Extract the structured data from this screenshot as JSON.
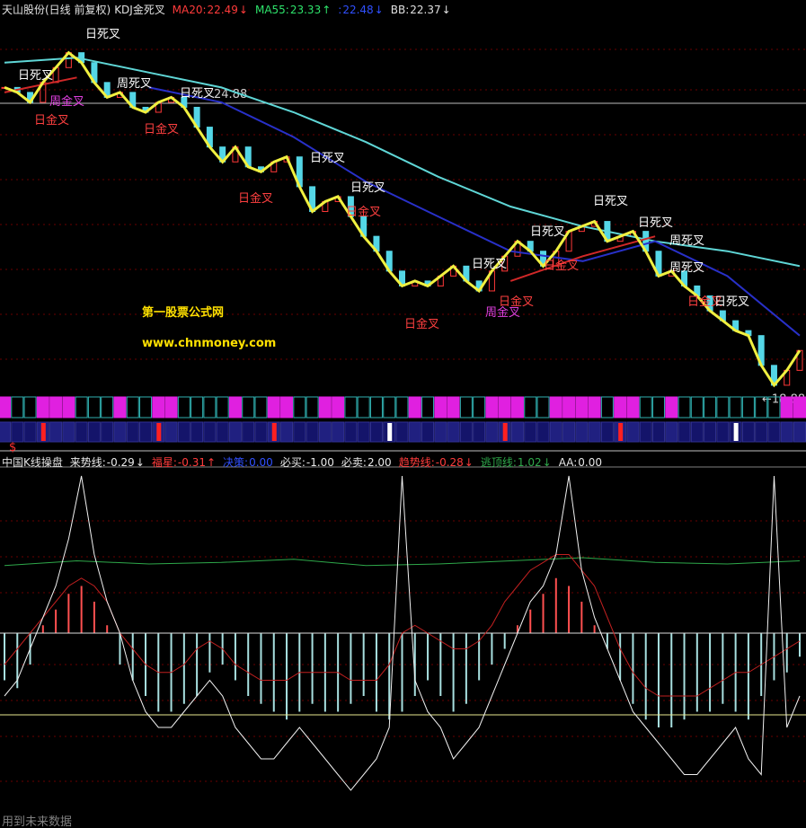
{
  "top_panel": {
    "title": "天山股份(日线 前复权)",
    "indicator": "KDJ金死叉",
    "legend": [
      {
        "name": "MA20:",
        "value": 22.49,
        "arrow": "↓",
        "color": "#ff3b3b"
      },
      {
        "name": "MA55:",
        "value": 23.33,
        "arrow": "↑",
        "color": "#2ee36b"
      },
      {
        "name": ":",
        "value": 22.48,
        "arrow": "↓",
        "color": "#3050ff"
      },
      {
        "name": "BB:",
        "value": 22.37,
        "arrow": "↓",
        "color": "#e0e0e0"
      }
    ],
    "ylim": [
      19.0,
      26.6
    ],
    "price_labels": [
      {
        "value": 24.88,
        "label": "24.88"
      },
      {
        "value": 18.88,
        "label": "←18.88"
      }
    ],
    "close": [
      25.2,
      25.1,
      24.9,
      25.3,
      25.6,
      25.9,
      25.7,
      25.3,
      25.0,
      25.1,
      24.8,
      24.7,
      24.9,
      25.0,
      24.8,
      24.4,
      24.0,
      23.7,
      24.0,
      23.6,
      23.5,
      23.7,
      23.8,
      23.2,
      22.7,
      22.9,
      23.0,
      22.6,
      22.2,
      21.9,
      21.5,
      21.2,
      21.3,
      21.2,
      21.4,
      21.6,
      21.3,
      21.1,
      21.5,
      21.8,
      22.1,
      21.9,
      21.6,
      21.9,
      22.3,
      22.4,
      22.5,
      22.1,
      22.2,
      22.3,
      21.9,
      21.4,
      21.5,
      21.2,
      21.0,
      20.7,
      20.5,
      20.3,
      20.2,
      19.6,
      19.2,
      19.5,
      19.9
    ],
    "lines": [
      {
        "color": "#5fd6d6",
        "values": [
          25.7,
          25.8,
          25.5,
          25.2,
          24.7,
          24.1,
          23.4,
          22.8,
          22.4,
          22.1,
          21.9,
          21.6
        ]
      },
      {
        "color": "#2830c8",
        "values": [
          null,
          null,
          25.2,
          24.9,
          24.2,
          23.3,
          22.6,
          21.9,
          21.7,
          22.1,
          21.4,
          20.2
        ]
      },
      {
        "color": "#d02828",
        "values": [
          25.1,
          25.4,
          null,
          null,
          null,
          null,
          null,
          21.3,
          21.8,
          22.2,
          null,
          null
        ]
      }
    ],
    "annotations": [
      "日死叉",
      "日死叉",
      "周金叉",
      "日金叉",
      "周死叉",
      "日死叉",
      "日金叉",
      "日死叉",
      "日死叉",
      "日金叉",
      "日金叉",
      "日死叉",
      "日死叉",
      "日死叉",
      "日死叉",
      "日金叉",
      "周死叉",
      "周死叉",
      "日金叉",
      "周金叉",
      "日金叉",
      "日金叉",
      "日死叉"
    ],
    "watermark": [
      "第一股票公式网",
      "www.chnmoney.com"
    ],
    "marker": "$"
  },
  "bottom_panel": {
    "title": "中国K线操盘",
    "fields": [
      {
        "name": "来势线:",
        "value": -0.29,
        "arrow": "↓",
        "color": "#e8e8e8"
      },
      {
        "name": "福星:",
        "value": -0.31,
        "arrow": "↑",
        "color": "#ff3b3b"
      },
      {
        "name": "决策:",
        "value": 0,
        "label": "0.00",
        "color": "#3050ff"
      },
      {
        "name": "必买:",
        "value": -1,
        "label": "-1.00",
        "color": "#e8e8e8"
      },
      {
        "name": "必卖:",
        "value": 2,
        "label": "2.00",
        "color": "#e8e8e8"
      },
      {
        "name": "趋势线:",
        "value": -0.28,
        "arrow": "↓",
        "color": "#ff3b3b"
      },
      {
        "name": "逃顶线:",
        "value": 1.02,
        "arrow": "↓",
        "color": "#2ea84a"
      },
      {
        "name": "AA:",
        "value": 0,
        "label": "0.00",
        "color": "#e8e8e8"
      }
    ],
    "ylim": [
      -12,
      10
    ],
    "hist": [
      -3,
      -3.5,
      -2,
      0.5,
      1.5,
      2.5,
      3,
      2,
      0.5,
      -2,
      -3,
      -4,
      -5,
      -5,
      -4.5,
      -4,
      -2.5,
      -2,
      -3,
      -4,
      -4.5,
      -5,
      -5.5,
      -5,
      -4.5,
      -5,
      -5,
      -4.5,
      -4,
      -5,
      -5.5,
      -5,
      -4,
      -3,
      -4,
      -5,
      -4.5,
      -3,
      -2,
      -1,
      0.5,
      1.5,
      2.5,
      3.5,
      3,
      2,
      0.5,
      -1,
      -3,
      -4.5,
      -5.5,
      -6,
      -6,
      -5.5,
      -5,
      -5,
      -4.5,
      -5,
      -5.5,
      -4,
      -3,
      -2.5,
      -1.5
    ],
    "white": [
      -4,
      -3,
      -1,
      1,
      3,
      6,
      10,
      5,
      2,
      0,
      -3,
      -5,
      -6,
      -6,
      -5,
      -4,
      -3,
      -4,
      -6,
      -7,
      -8,
      -8,
      -7,
      -6,
      -7,
      -8,
      -9,
      -10,
      -9,
      -8,
      -6,
      10,
      -3,
      -5,
      -6,
      -8,
      -7,
      -6,
      -4,
      -2,
      0,
      2,
      3,
      5,
      10,
      4,
      1,
      -1,
      -3,
      -5,
      -6,
      -7,
      -8,
      -9,
      -9,
      -8,
      -7,
      -6,
      -8,
      -9,
      10,
      -6,
      -4
    ],
    "red": [
      -2,
      -1,
      0,
      1,
      2,
      3,
      3.5,
      3,
      2,
      0,
      -1,
      -2,
      -2.5,
      -2.5,
      -2,
      -1,
      -0.5,
      -1,
      -2,
      -2.5,
      -3,
      -3,
      -3,
      -2.5,
      -2.5,
      -2.5,
      -2.5,
      -3,
      -3,
      -3,
      -2,
      0,
      0.5,
      0,
      -0.5,
      -1,
      -1,
      -0.5,
      0.5,
      2,
      3,
      4,
      4.5,
      5,
      5,
      4,
      3,
      1,
      -1,
      -2.5,
      -3.5,
      -4,
      -4,
      -4,
      -4,
      -3.5,
      -3,
      -2.5,
      -2.5,
      -2,
      -1.5,
      -1,
      -0.5
    ],
    "green": [
      4.3,
      4.6,
      4.4,
      4.5,
      4.7,
      4.3,
      4.4,
      4.6,
      4.8,
      4.5,
      4.4,
      4.6
    ],
    "level": -5.2,
    "footer": "用到未来数据"
  }
}
